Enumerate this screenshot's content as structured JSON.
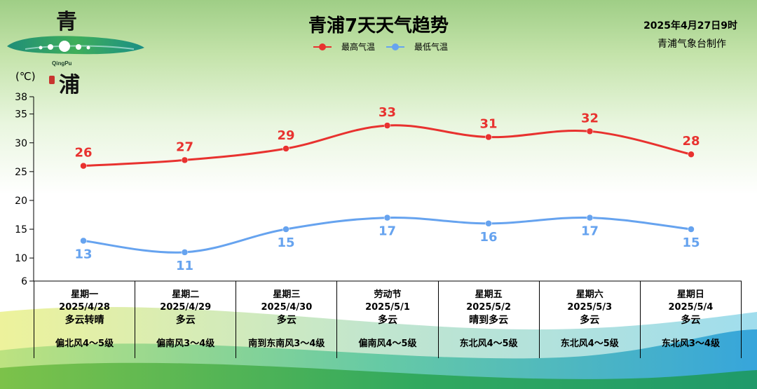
{
  "header": {
    "title": "青浦7天天气趋势",
    "issue_time": "2025年4月27日9时",
    "issuer": "青浦气象台制作"
  },
  "logo": {
    "char_top": "青",
    "char_bottom": "浦",
    "latin": "QingPu"
  },
  "unit_label": "(℃)",
  "colors": {
    "high": "#e8322f",
    "low": "#66a3ef"
  },
  "chart_data": {
    "type": "line",
    "title": "青浦7天天气趋势",
    "ylabel": "(℃)",
    "ylim": [
      6,
      38
    ],
    "yticks": [
      6,
      10,
      15,
      20,
      25,
      30,
      35,
      38
    ],
    "grid": false,
    "legend": "top-center",
    "categories": [
      "2025/4/28",
      "2025/4/29",
      "2025/4/30",
      "2025/5/1",
      "2025/5/2",
      "2025/5/3",
      "2025/5/4"
    ],
    "series": [
      {
        "name": "最高气温",
        "values": [
          26,
          27,
          29,
          33,
          31,
          32,
          28
        ]
      },
      {
        "name": "最低气温",
        "values": [
          13,
          11,
          15,
          17,
          16,
          17,
          15
        ]
      }
    ]
  },
  "days": [
    {
      "name": "星期一",
      "date": "2025/4/28",
      "weather": "多云转晴",
      "wind": "偏北风4～5级"
    },
    {
      "name": "星期二",
      "date": "2025/4/29",
      "weather": "多云",
      "wind": "偏南风3～4级"
    },
    {
      "name": "星期三",
      "date": "2025/4/30",
      "weather": "多云",
      "wind": "南到东南风3～4级"
    },
    {
      "name": "劳动节",
      "date": "2025/5/1",
      "weather": "多云",
      "wind": "偏南风4～5级"
    },
    {
      "name": "星期五",
      "date": "2025/5/2",
      "weather": "晴到多云",
      "wind": "东北风4～5级"
    },
    {
      "name": "星期六",
      "date": "2025/5/3",
      "weather": "多云",
      "wind": "东北风4～5级"
    },
    {
      "name": "星期日",
      "date": "2025/5/4",
      "weather": "多云",
      "wind": "东北风3～4级"
    }
  ]
}
